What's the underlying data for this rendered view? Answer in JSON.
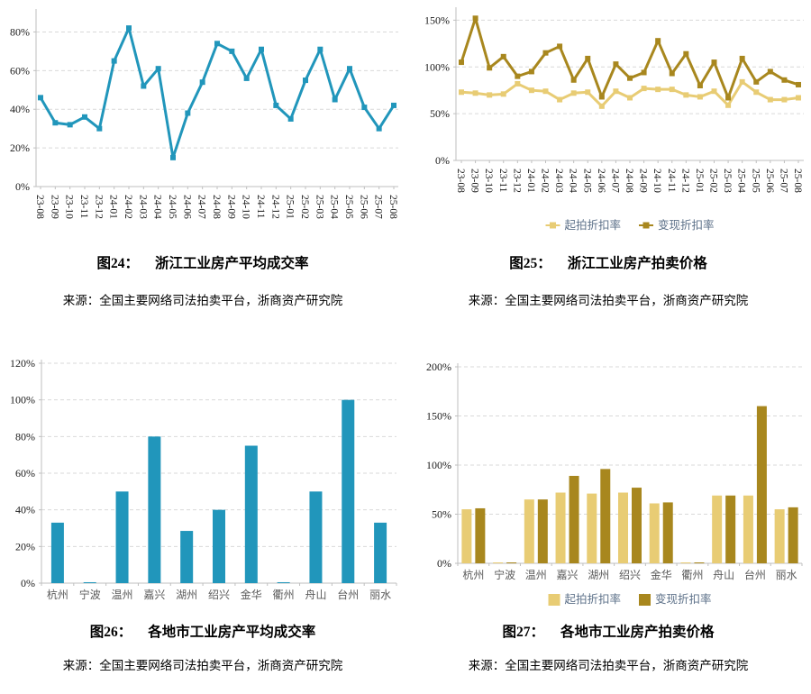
{
  "colors": {
    "teal": "#2196BB",
    "gold_light": "#E8CC74",
    "gold_dark": "#A8871E",
    "grid": "#D9D9D9",
    "axis": "#BFBFBF",
    "tick_text": "#1A1A1A",
    "date_text": "#1A1A1A",
    "category_text": "#5A5A5A",
    "legend_text": "#5D7189",
    "caption_text": "#000000",
    "background": "#FFFFFF"
  },
  "chart_data": [
    {
      "fig_label": "图24：",
      "title": "浙江工业房产平均成交率",
      "source": "来源：全国主要网络司法拍卖平台，浙商资产研究院",
      "type": "line",
      "x": [
        "23-08",
        "23-09",
        "23-10",
        "23-11",
        "23-12",
        "24-01",
        "24-02",
        "24-03",
        "24-04",
        "24-05",
        "24-06",
        "24-07",
        "24-08",
        "24-09",
        "24-10",
        "24-11",
        "24-12",
        "25-01",
        "25-02",
        "25-03",
        "25-04",
        "25-05",
        "25-06",
        "25-07",
        "25-08"
      ],
      "series": [
        {
          "color_key": "teal",
          "values": [
            46,
            33,
            32,
            36,
            30,
            65,
            82,
            52,
            61,
            15,
            38,
            54,
            74,
            70,
            56,
            71,
            42,
            35,
            55,
            71,
            45,
            61,
            41,
            30,
            42
          ]
        }
      ],
      "ylim": [
        0,
        90
      ],
      "yticks": [
        0,
        20,
        40,
        60,
        80
      ],
      "grid": true,
      "legend": null
    },
    {
      "fig_label": "图25：",
      "title": "浙江工业房产拍卖价格",
      "source": "来源：全国主要网络司法拍卖平台，浙商资产研究院",
      "type": "line",
      "x": [
        "23-08",
        "23-09",
        "23-10",
        "23-11",
        "23-12",
        "24-01",
        "24-02",
        "24-03",
        "24-04",
        "24-05",
        "24-06",
        "24-07",
        "24-08",
        "24-09",
        "24-10",
        "24-11",
        "24-12",
        "25-01",
        "25-02",
        "25-03",
        "25-04",
        "25-05",
        "25-06",
        "25-07",
        "25-08"
      ],
      "series": [
        {
          "name": "起拍折扣率",
          "color_key": "gold_light",
          "values": [
            73,
            72,
            70,
            71,
            82,
            75,
            74,
            65,
            72,
            73,
            58,
            74,
            67,
            77,
            76,
            76,
            70,
            68,
            74,
            59,
            84,
            73,
            65,
            65,
            67
          ]
        },
        {
          "name": "变现折扣率",
          "color_key": "gold_dark",
          "values": [
            105,
            152,
            99,
            111,
            90,
            95,
            115,
            122,
            86,
            109,
            68,
            103,
            88,
            94,
            128,
            93,
            114,
            80,
            105,
            67,
            109,
            84,
            95,
            86,
            81
          ]
        }
      ],
      "ylim": [
        0,
        160
      ],
      "yticks": [
        0,
        50,
        100,
        150
      ],
      "grid": true,
      "legend": {
        "position": "bottom",
        "marker": "line-square"
      }
    },
    {
      "fig_label": "图26：",
      "title": "各地市工业房产平均成交率",
      "source": "来源：全国主要网络司法拍卖平台，浙商资产研究院",
      "type": "bar",
      "categories": [
        "杭州",
        "宁波",
        "温州",
        "嘉兴",
        "湖州",
        "绍兴",
        "金华",
        "衢州",
        "舟山",
        "台州",
        "丽水"
      ],
      "series": [
        {
          "color_key": "teal",
          "values": [
            33,
            0.5,
            50,
            80,
            28.5,
            40,
            75,
            0.5,
            50,
            100,
            33
          ]
        }
      ],
      "ylim": [
        0,
        120
      ],
      "yticks": [
        0,
        20,
        40,
        60,
        80,
        100,
        120
      ],
      "grid": true,
      "legend": null
    },
    {
      "fig_label": "图27：",
      "title": "各地市工业房产拍卖价格",
      "source": "来源：全国主要网络司法拍卖平台，浙商资产研究院",
      "type": "bar",
      "categories": [
        "杭州",
        "宁波",
        "温州",
        "嘉兴",
        "湖州",
        "绍兴",
        "金华",
        "衢州",
        "舟山",
        "台州",
        "丽水"
      ],
      "series": [
        {
          "name": "起拍折扣率",
          "color_key": "gold_light",
          "values": [
            55,
            0.5,
            65,
            72,
            71,
            72,
            61,
            0.5,
            69,
            69,
            55
          ]
        },
        {
          "name": "变现折扣率",
          "color_key": "gold_dark",
          "values": [
            56,
            0.5,
            65,
            89,
            96,
            77,
            62,
            0.5,
            69,
            160,
            57
          ]
        }
      ],
      "ylim": [
        0,
        200
      ],
      "yticks": [
        0,
        50,
        100,
        150,
        200
      ],
      "grid": true,
      "legend": {
        "position": "bottom",
        "marker": "square"
      }
    }
  ]
}
